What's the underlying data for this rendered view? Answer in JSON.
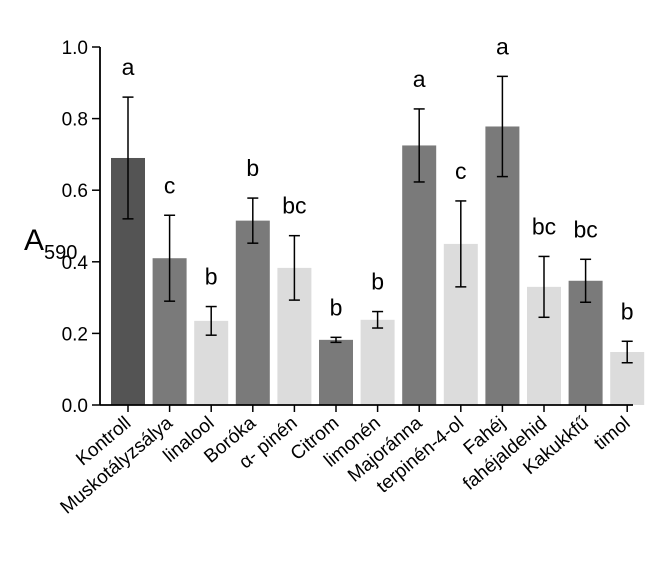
{
  "chart_data": {
    "type": "bar",
    "ylabel": "A",
    "ylabel_subscript": "590",
    "ylim": [
      0,
      1.0
    ],
    "yticks": [
      "0.0",
      "0.2",
      "0.4",
      "0.6",
      "0.8",
      "1.0"
    ],
    "categories": [
      "Kontroll",
      "Muskotályzsálya",
      "linalool",
      "Boróka",
      "α- pinén",
      "Citrom",
      "limonén",
      "Majoránna",
      "terpinén-4-ol",
      "Fahéj",
      "fahéjaldehid",
      "Kakukkfű",
      "timol"
    ],
    "values": [
      0.69,
      0.41,
      0.235,
      0.515,
      0.383,
      0.182,
      0.238,
      0.725,
      0.45,
      0.778,
      0.33,
      0.347,
      0.148
    ],
    "errors": [
      0.17,
      0.12,
      0.04,
      0.063,
      0.09,
      0.007,
      0.023,
      0.102,
      0.12,
      0.14,
      0.085,
      0.06,
      0.03
    ],
    "significance": [
      "a",
      "c",
      "b",
      "b",
      "bc",
      "b",
      "b",
      "a",
      "c",
      "a",
      "bc",
      "bc",
      "b"
    ],
    "bar_colors": [
      "#545454",
      "#7a7a7a",
      "#dcdcdc",
      "#7a7a7a",
      "#dcdcdc",
      "#7a7a7a",
      "#dcdcdc",
      "#7a7a7a",
      "#dcdcdc",
      "#7a7a7a",
      "#dcdcdc",
      "#7a7a7a",
      "#dcdcdc"
    ],
    "grid": false,
    "legend": "none"
  }
}
